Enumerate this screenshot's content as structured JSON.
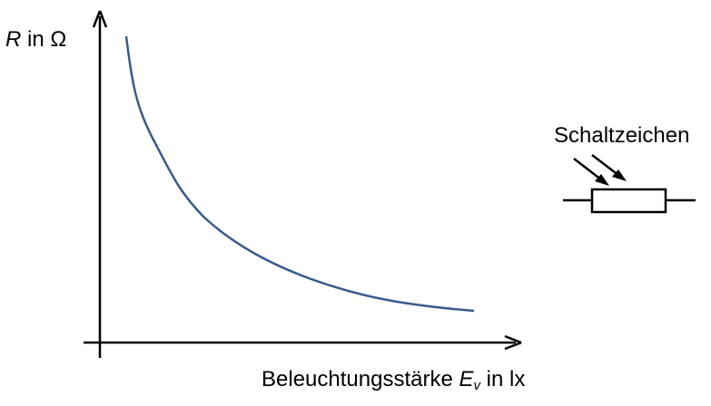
{
  "y_axis": {
    "var": "R",
    "rest": " in Ω"
  },
  "x_axis": {
    "text": "Beleuchtungsstärke ",
    "var": "E",
    "sub": "v",
    "rest": " in lx"
  },
  "symbol": {
    "title": "Schaltzeichen"
  },
  "colors": {
    "curve": "#3a5a8c",
    "axes": "#000000"
  }
}
